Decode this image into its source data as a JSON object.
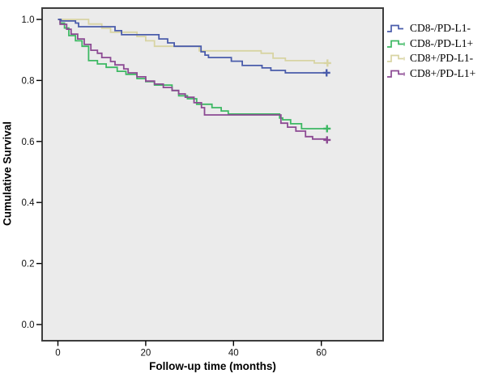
{
  "figure": {
    "background": "#ffffff",
    "plot_background": "#ebebeb",
    "plot_border_color": "#3d3d3d"
  },
  "legend": {
    "items": [
      {
        "label": "CD8-/PD-L1-",
        "color": "#4a5cab",
        "censor_tick": false
      },
      {
        "label": "CD8-/PD-L1+",
        "color": "#3db863",
        "censor_tick": true
      },
      {
        "label": "CD8+/PD-L1-",
        "color": "#d8d4a3",
        "censor_tick": true
      },
      {
        "label": "CD8+/PD-L1+",
        "color": "#8c4a93",
        "censor_tick": true
      }
    ]
  },
  "chart_data": {
    "type": "line",
    "subtype": "kaplan-meier-step",
    "title": "",
    "xlabel": "Follow-up time (months)",
    "ylabel": "Cumulative Survival",
    "xlim": [
      -3.6,
      74
    ],
    "ylim": [
      -0.035,
      1.037
    ],
    "grid": false,
    "legend_position": "outside-top-right",
    "x_ticks": [
      0,
      20,
      40,
      60
    ],
    "x_tick_labels": [
      "0",
      "20",
      "40",
      "60"
    ],
    "y_ticks": [
      1.0,
      0.8,
      0.6,
      0.4,
      0.2,
      0.0
    ],
    "y_tick_labels": [
      "1.0",
      "0.8",
      "0.6",
      "0.4",
      "0.2",
      "0.0"
    ],
    "series": [
      {
        "name": "CD8+/PD-L1-",
        "color": "#d8d4a3",
        "points": [
          [
            0,
            1.0
          ],
          [
            7,
            0.985
          ],
          [
            10,
            0.971
          ],
          [
            12,
            0.958
          ],
          [
            18,
            0.944
          ],
          [
            20,
            0.93
          ],
          [
            22,
            0.912
          ],
          [
            32.2,
            0.897
          ],
          [
            46.3,
            0.889
          ],
          [
            49,
            0.873
          ],
          [
            51.8,
            0.865
          ],
          [
            58.4,
            0.857
          ]
        ],
        "censor_end": [
          61.4,
          0.857
        ]
      },
      {
        "name": "CD8-/PD-L1+",
        "color": "#3db863",
        "points": [
          [
            0,
            1.0
          ],
          [
            0.5,
            0.988
          ],
          [
            1.5,
            0.972
          ],
          [
            2.5,
            0.947
          ],
          [
            4,
            0.93
          ],
          [
            5.5,
            0.912
          ],
          [
            7,
            0.865
          ],
          [
            9,
            0.854
          ],
          [
            11,
            0.843
          ],
          [
            13.5,
            0.83
          ],
          [
            15.5,
            0.82
          ],
          [
            18,
            0.806
          ],
          [
            20,
            0.796
          ],
          [
            22,
            0.785
          ],
          [
            26,
            0.767
          ],
          [
            27.5,
            0.75
          ],
          [
            29.5,
            0.74
          ],
          [
            31.6,
            0.722
          ],
          [
            35.1,
            0.711
          ],
          [
            37.2,
            0.7
          ],
          [
            38.8,
            0.69
          ],
          [
            50.5,
            0.677
          ],
          [
            51.2,
            0.671
          ],
          [
            53,
            0.658
          ],
          [
            55.5,
            0.642
          ]
        ],
        "censor_end": [
          61.3,
          0.642
        ]
      },
      {
        "name": "CD8+/PD-L1+",
        "color": "#8c4a93",
        "points": [
          [
            0,
            1.0
          ],
          [
            0.5,
            0.984
          ],
          [
            2,
            0.968
          ],
          [
            3,
            0.952
          ],
          [
            4.5,
            0.936
          ],
          [
            6,
            0.918
          ],
          [
            7.5,
            0.899
          ],
          [
            9,
            0.889
          ],
          [
            10,
            0.875
          ],
          [
            12,
            0.862
          ],
          [
            13,
            0.851
          ],
          [
            15,
            0.838
          ],
          [
            16,
            0.825
          ],
          [
            18,
            0.812
          ],
          [
            20,
            0.798
          ],
          [
            22,
            0.788
          ],
          [
            24,
            0.777
          ],
          [
            26,
            0.767
          ],
          [
            27.5,
            0.756
          ],
          [
            29,
            0.745
          ],
          [
            31,
            0.727
          ],
          [
            32.7,
            0.711
          ],
          [
            33.4,
            0.687
          ],
          [
            50.8,
            0.66
          ],
          [
            52.3,
            0.647
          ],
          [
            54.2,
            0.634
          ],
          [
            56.4,
            0.616
          ],
          [
            58,
            0.608
          ]
        ],
        "censor_end": [
          61.3,
          0.605
        ]
      },
      {
        "name": "CD8-/PD-L1-",
        "color": "#4a5cab",
        "points": [
          [
            0,
            1.0
          ],
          [
            0.7,
            0.995
          ],
          [
            4,
            0.988
          ],
          [
            4.7,
            0.976
          ],
          [
            13,
            0.963
          ],
          [
            14.5,
            0.95
          ],
          [
            23,
            0.936
          ],
          [
            25,
            0.923
          ],
          [
            26.5,
            0.912
          ],
          [
            32.6,
            0.894
          ],
          [
            33.5,
            0.883
          ],
          [
            34.3,
            0.875
          ],
          [
            39.5,
            0.863
          ],
          [
            42,
            0.849
          ],
          [
            46.5,
            0.841
          ],
          [
            48.5,
            0.833
          ],
          [
            51.8,
            0.825
          ]
        ],
        "censor_end": [
          61.2,
          0.825
        ]
      }
    ]
  }
}
